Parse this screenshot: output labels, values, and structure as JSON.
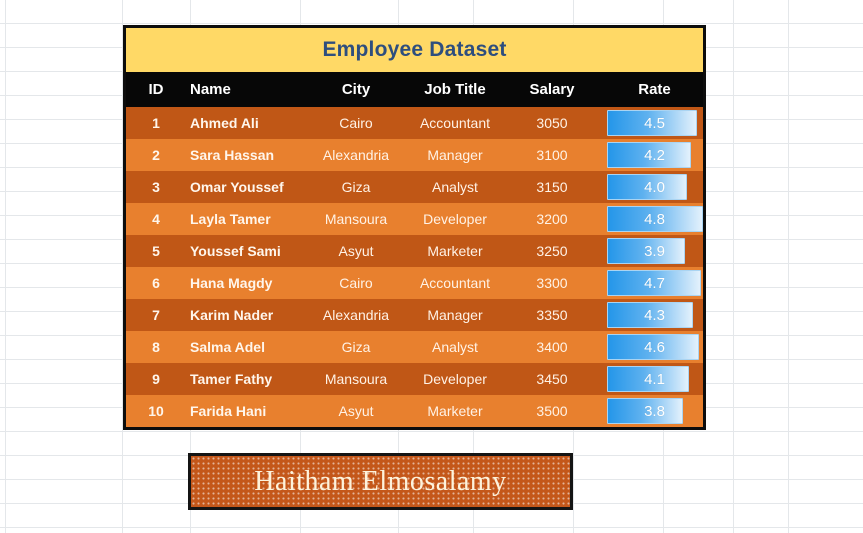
{
  "table": {
    "title": "Employee Dataset",
    "columns": [
      "ID",
      "Name",
      "City",
      "Job Title",
      "Salary",
      "Rate"
    ],
    "rows": [
      {
        "id": "1",
        "name": "Ahmed Ali",
        "city": "Cairo",
        "job": "Accountant",
        "salary": "3050",
        "rate": 4.5
      },
      {
        "id": "2",
        "name": "Sara Hassan",
        "city": "Alexandria",
        "job": "Manager",
        "salary": "3100",
        "rate": 4.2
      },
      {
        "id": "3",
        "name": "Omar Youssef",
        "city": "Giza",
        "job": "Analyst",
        "salary": "3150",
        "rate": 4.0
      },
      {
        "id": "4",
        "name": "Layla Tamer",
        "city": "Mansoura",
        "job": "Developer",
        "salary": "3200",
        "rate": 4.8
      },
      {
        "id": "5",
        "name": "Youssef Sami",
        "city": "Asyut",
        "job": "Marketer",
        "salary": "3250",
        "rate": 3.9
      },
      {
        "id": "6",
        "name": "Hana Magdy",
        "city": "Cairo",
        "job": "Accountant",
        "salary": "3300",
        "rate": 4.7
      },
      {
        "id": "7",
        "name": "Karim Nader",
        "city": "Alexandria",
        "job": "Manager",
        "salary": "3350",
        "rate": 4.3
      },
      {
        "id": "8",
        "name": "Salma Adel",
        "city": "Giza",
        "job": "Analyst",
        "salary": "3400",
        "rate": 4.6
      },
      {
        "id": "9",
        "name": "Tamer Fathy",
        "city": "Mansoura",
        "job": "Developer",
        "salary": "3450",
        "rate": 4.1
      },
      {
        "id": "10",
        "name": "Farida Hani",
        "city": "Asyut",
        "job": "Marketer",
        "salary": "3500",
        "rate": 3.8
      }
    ],
    "rate_bar_max": 4.8,
    "colors": {
      "title_bg": "#ffd966",
      "title_text": "#2e4e7e",
      "header_bg": "#070707",
      "row_dark": "#c05716",
      "row_light": "#e8802e",
      "bar_start": "#2496e9",
      "bar_end": "#e3f1fc",
      "bar_border": "#aad4f2"
    }
  },
  "signature": {
    "text": "Haitham Elmosalamy"
  }
}
